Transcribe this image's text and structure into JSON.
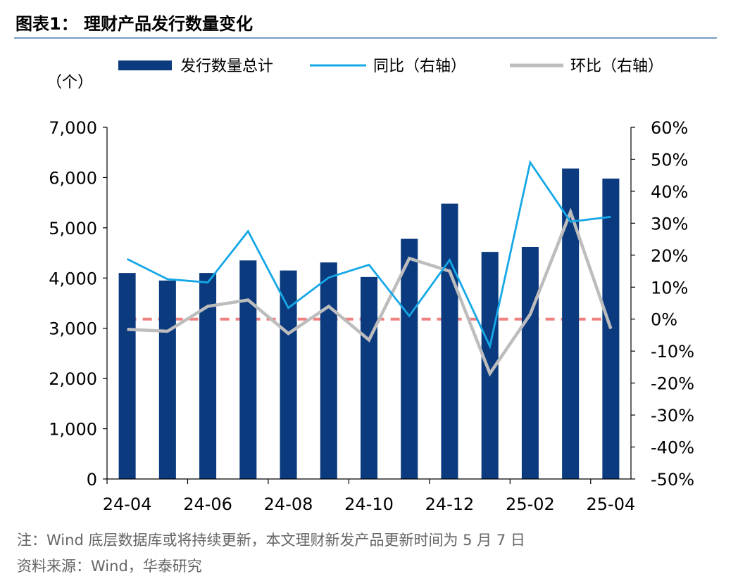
{
  "figure": {
    "title": "图表1： 理财产品发行数量变化",
    "footnote": "注：Wind 底层数据库或将持续更新，本文理财新发产品更新时间为 5 月 7 日",
    "source": "资料来源：Wind，华泰研究"
  },
  "colors": {
    "bar": "#0b3a7e",
    "yoy": "#16a8e6",
    "mom": "#bdbdbd",
    "zero_line": "#f08080",
    "rule": "#4a7fb5",
    "text": "#000000",
    "note_text": "#666666"
  },
  "chart_data": {
    "type": "bar",
    "categories": [
      "24-04",
      "24-05",
      "24-06",
      "24-07",
      "24-08",
      "24-09",
      "24-10",
      "24-11",
      "24-12",
      "25-01",
      "25-02",
      "25-03",
      "25-04"
    ],
    "x_tick_labels": [
      "24-04",
      "24-06",
      "24-08",
      "24-10",
      "24-12",
      "25-02",
      "25-04"
    ],
    "left_axis": {
      "unit_label": "（个）",
      "ylim": [
        0,
        7000
      ],
      "tick_labels": [
        "0",
        "1,000",
        "2,000",
        "3,000",
        "4,000",
        "5,000",
        "6,000",
        "7,000"
      ],
      "tick_values": [
        0,
        1000,
        2000,
        3000,
        4000,
        5000,
        6000,
        7000
      ]
    },
    "right_axis": {
      "ylim": [
        -50,
        60
      ],
      "tick_labels": [
        "-50%",
        "-40%",
        "-30%",
        "-20%",
        "-10%",
        "0%",
        "10%",
        "20%",
        "30%",
        "40%",
        "50%",
        "60%"
      ],
      "tick_values": [
        -50,
        -40,
        -30,
        -20,
        -10,
        0,
        10,
        20,
        30,
        40,
        50,
        60
      ]
    },
    "series": [
      {
        "name": "发行数量总计",
        "type": "bar",
        "axis": "left",
        "values": [
          4100,
          3950,
          4100,
          4350,
          4150,
          4310,
          4020,
          4780,
          5480,
          4520,
          4620,
          6180,
          5980
        ]
      },
      {
        "name": "同比（右轴）",
        "type": "line",
        "axis": "right",
        "values": [
          18.8,
          12.5,
          11.5,
          27.5,
          3.5,
          13,
          17,
          1,
          18.5,
          -8.5,
          49,
          30.5,
          32
        ]
      },
      {
        "name": "环比（右轴）",
        "type": "line",
        "axis": "right",
        "values": [
          -3.2,
          -3.8,
          4,
          6,
          -4.5,
          4,
          -6.5,
          19,
          15,
          -17,
          1.5,
          33.5,
          -3
        ]
      }
    ],
    "reference_line": {
      "axis": "right",
      "value": 0,
      "style": "dashed"
    },
    "legend_position": "top",
    "grid": false
  }
}
